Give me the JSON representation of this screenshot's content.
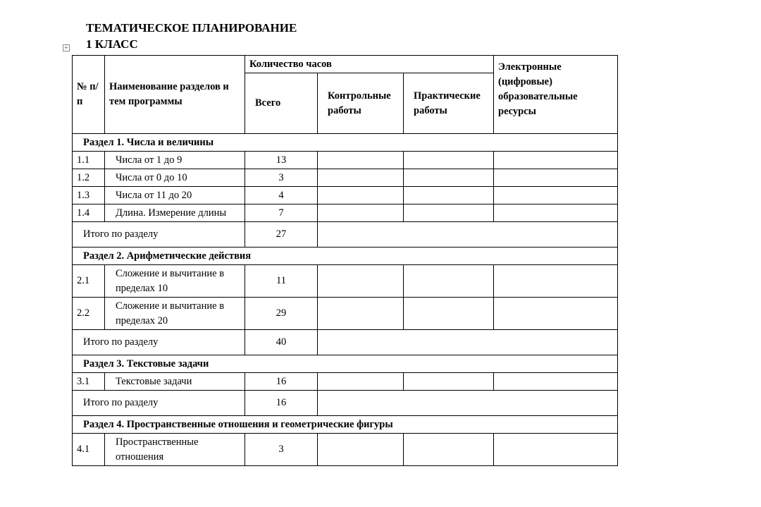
{
  "title": "ТЕМАТИЧЕСКОЕ ПЛАНИРОВАНИЕ",
  "subtitle": "1 КЛАСС",
  "header": {
    "num": "№ п/п",
    "name": "Наименование разделов и тем программы",
    "hours": "Количество часов",
    "total": "Всего",
    "control": "Контрольные работы",
    "practical": "Практические работы",
    "resources": "Электронные (цифровые) образовательные ресурсы"
  },
  "sections": [
    {
      "title": "Раздел 1. Числа и величины",
      "rows": [
        {
          "num": "1.1",
          "name": "Числа от 1 до 9",
          "total": "13"
        },
        {
          "num": "1.2",
          "name": "Числа от 0 до 10",
          "total": "3"
        },
        {
          "num": "1.3",
          "name": "Числа от 11 до 20",
          "total": "4"
        },
        {
          "num": "1.4",
          "name": "Длина. Измерение длины",
          "total": "7"
        }
      ],
      "subtotal_label": "Итого по разделу",
      "subtotal": "27"
    },
    {
      "title": "Раздел 2. Арифметические действия",
      "rows": [
        {
          "num": "2.1",
          "name": "Сложение и вычитание в пределах 10",
          "total": "11"
        },
        {
          "num": "2.2",
          "name": "Сложение и вычитание в пределах 20",
          "total": "29"
        }
      ],
      "subtotal_label": "Итого по разделу",
      "subtotal": "40"
    },
    {
      "title": "Раздел 3. Текстовые задачи",
      "rows": [
        {
          "num": "3.1",
          "name": "Текстовые задачи",
          "total": "16"
        }
      ],
      "subtotal_label": "Итого по разделу",
      "subtotal": "16"
    },
    {
      "title": "Раздел 4. Пространственные отношения и геометрические фигуры",
      "rows": [
        {
          "num": "4.1",
          "name": "Пространственные отношения",
          "total": "3"
        }
      ]
    }
  ]
}
